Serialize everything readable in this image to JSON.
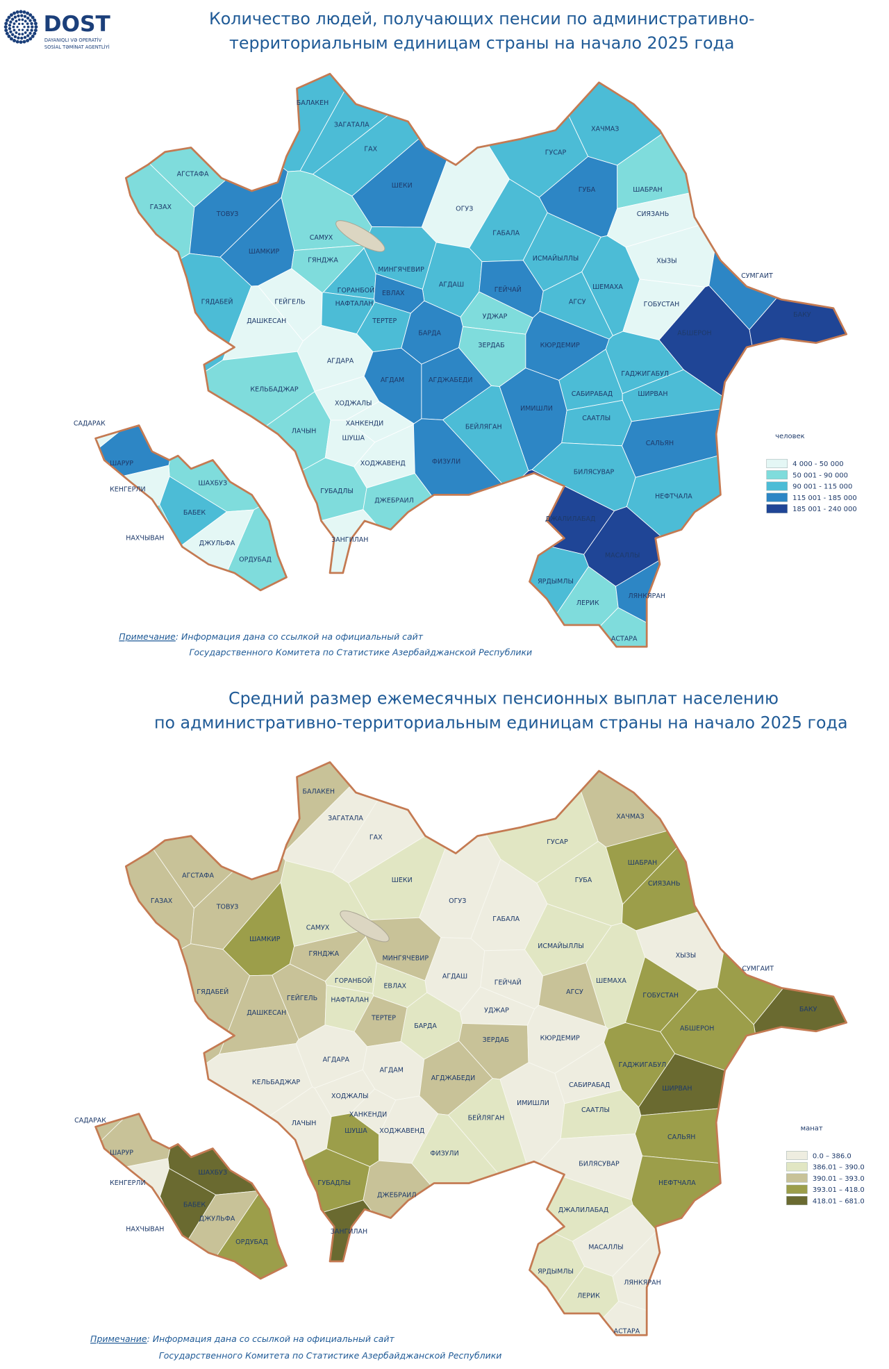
{
  "logo": {
    "name": "DOST",
    "line1": "DAYANIQLI VƏ OPERATİV",
    "line2": "SOSİAL TƏMİNAT AGENTLİYİ"
  },
  "maps": [
    {
      "title": [
        "Количество людей, получающих пенсии по административно-",
        "территориальным единицам страны на начало 2025 года"
      ],
      "legend_title": "человек",
      "legend": [
        {
          "label": "4 000 - 50 000",
          "color": "#e4f7f5"
        },
        {
          "label": "50 001 - 90 000",
          "color": "#7fdcdc"
        },
        {
          "label": "90 001 - 115 000",
          "color": "#4cbcd6"
        },
        {
          "label": "115 001 - 185 000",
          "color": "#2d86c5"
        },
        {
          "label": "185 001 - 240 000",
          "color": "#1f4596"
        }
      ],
      "regions": [
        {
          "name": "БАЛАКЕН",
          "color": "#4cbcd6"
        },
        {
          "name": "ЗАГАТАЛА",
          "color": "#4cbcd6"
        },
        {
          "name": "ГАХ",
          "color": "#4cbcd6"
        },
        {
          "name": "ШЕКИ",
          "color": "#2d86c5"
        },
        {
          "name": "ОГУЗ",
          "color": "#e4f7f5"
        },
        {
          "name": "ГУСАР",
          "color": "#4cbcd6"
        },
        {
          "name": "ХАЧМАЗ",
          "color": "#4cbcd6"
        },
        {
          "name": "ГУБА",
          "color": "#2d86c5"
        },
        {
          "name": "ШАБРАН",
          "color": "#7fdcdc"
        },
        {
          "name": "СИЯЗАНЬ",
          "color": "#e4f7f5"
        },
        {
          "name": "ГАБАЛА",
          "color": "#4cbcd6"
        },
        {
          "name": "ИСМАЙЫЛЛЫ",
          "color": "#4cbcd6"
        },
        {
          "name": "ХЫЗЫ",
          "color": "#e4f7f5"
        },
        {
          "name": "СУМГАИТ",
          "color": "#2d86c5"
        },
        {
          "name": "АГСТАФА",
          "color": "#7fdcdc"
        },
        {
          "name": "ГАЗАХ",
          "color": "#7fdcdc"
        },
        {
          "name": "ТОВУЗ",
          "color": "#2d86c5"
        },
        {
          "name": "САМУХ",
          "color": "#7fdcdc"
        },
        {
          "name": "ШАМКИР",
          "color": "#2d86c5"
        },
        {
          "name": "ГЯНДЖА",
          "color": "#7fdcdc"
        },
        {
          "name": "МИНГЯЧЕВИР",
          "color": "#4cbcd6"
        },
        {
          "name": "АГДАШ",
          "color": "#4cbcd6"
        },
        {
          "name": "ГЕЙЧАЙ",
          "color": "#2d86c5"
        },
        {
          "name": "ШЕМАХА",
          "color": "#4cbcd6"
        },
        {
          "name": "ГЯДАБЕЙ",
          "color": "#4cbcd6"
        },
        {
          "name": "ГЕЙГЕЛЬ",
          "color": "#e4f7f5"
        },
        {
          "name": "ГОРАНБОЙ",
          "color": "#4cbcd6"
        },
        {
          "name": "НАФТАЛАН",
          "color": "#4cbcd6"
        },
        {
          "name": "ЕВЛАХ",
          "color": "#2d86c5"
        },
        {
          "name": "АГСУ",
          "color": "#4cbcd6"
        },
        {
          "name": "ГОБУСТАН",
          "color": "#e4f7f5"
        },
        {
          "name": "ДАШКЕСАН",
          "color": "#e4f7f5"
        },
        {
          "name": "ТЕРТЕР",
          "color": "#4cbcd6"
        },
        {
          "name": "УДЖАР",
          "color": "#7fdcdc"
        },
        {
          "name": "БАКУ",
          "color": "#1f4596"
        },
        {
          "name": "БАРДА",
          "color": "#2d86c5"
        },
        {
          "name": "АБШЕРОН",
          "color": "#1f4596"
        },
        {
          "name": "ЗЕРДАБ",
          "color": "#7fdcdc"
        },
        {
          "name": "КЮРДЕМИР",
          "color": "#2d86c5"
        },
        {
          "name": "АГДАРА",
          "color": "#e4f7f5"
        },
        {
          "name": "АГДАМ",
          "color": "#2d86c5"
        },
        {
          "name": "АГДЖАБЕДИ",
          "color": "#2d86c5"
        },
        {
          "name": "ГАДЖИГАБУЛ",
          "color": "#4cbcd6"
        },
        {
          "name": "КЕЛЬБАДЖАР",
          "color": "#7fdcdc"
        },
        {
          "name": "САБИРАБАД",
          "color": "#4cbcd6"
        },
        {
          "name": "ШИРВАН",
          "color": "#4cbcd6"
        },
        {
          "name": "ХОДЖАЛЫ",
          "color": "#e4f7f5"
        },
        {
          "name": "ИМИШЛИ",
          "color": "#2d86c5"
        },
        {
          "name": "САЛЬЯН",
          "color": "#2d86c5"
        },
        {
          "name": "САДАРАК",
          "color": "#e4f7f5"
        },
        {
          "name": "ХАНКЕНДИ",
          "color": "#e4f7f5"
        },
        {
          "name": "СААТЛЫ",
          "color": "#4cbcd6"
        },
        {
          "name": "ЛАЧЫН",
          "color": "#7fdcdc"
        },
        {
          "name": "БЕЙЛЯГАН",
          "color": "#4cbcd6"
        },
        {
          "name": "ШУША",
          "color": "#e4f7f5"
        },
        {
          "name": "ШАРУР",
          "color": "#2d86c5"
        },
        {
          "name": "ХОДЖАВЕНД",
          "color": "#e4f7f5"
        },
        {
          "name": "ФИЗУЛИ",
          "color": "#2d86c5"
        },
        {
          "name": "ШАХБУЗ",
          "color": "#7fdcdc"
        },
        {
          "name": "БИЛЯСУВАР",
          "color": "#4cbcd6"
        },
        {
          "name": "КЕНГЕРЛИ",
          "color": "#e4f7f5"
        },
        {
          "name": "ГУБАДЛЫ",
          "color": "#7fdcdc"
        },
        {
          "name": "ДЖЕБРАИЛ",
          "color": "#7fdcdc"
        },
        {
          "name": "НЕФТЧАЛА",
          "color": "#4cbcd6"
        },
        {
          "name": "БАБЕК",
          "color": "#4cbcd6"
        },
        {
          "name": "ДЖАЛИЛАБАД",
          "color": "#1f4596"
        },
        {
          "name": "ДЖУЛЬФА",
          "color": "#e4f7f5"
        },
        {
          "name": "НАХЧЫВАН",
          "color": "#7fdcdc"
        },
        {
          "name": "ЗАНГИЛАН",
          "color": "#e4f7f5"
        },
        {
          "name": "МАСАЛЛЫ",
          "color": "#1f4596"
        },
        {
          "name": "ОРДУБАД",
          "color": "#7fdcdc"
        },
        {
          "name": "ЯРДЫМЛЫ",
          "color": "#4cbcd6"
        },
        {
          "name": "ЛЕРИК",
          "color": "#7fdcdc"
        },
        {
          "name": "ЛЯНКЯРАН",
          "color": "#2d86c5"
        },
        {
          "name": "АСТАРА",
          "color": "#7fdcdc"
        }
      ],
      "note": {
        "label": "Примечание",
        "line1": ": Информация дана со ссылкой на официальный сайт",
        "line2": "Государственного Комитета по Статистике Азербайджанской Республики"
      }
    },
    {
      "title": [
        "Средний размер ежемесячных пенсионных выплат населению",
        "по административно-территориальным единицам страны на начало 2025 года"
      ],
      "legend_title": "манат",
      "legend": [
        {
          "label": "0.0 – 386.0",
          "color": "#eeede0"
        },
        {
          "label": "386.01 – 390.0",
          "color": "#e1e6c3"
        },
        {
          "label": "390.01 – 393.0",
          "color": "#c8c298"
        },
        {
          "label": "393.01 – 418.0",
          "color": "#9c9e4a"
        },
        {
          "label": "418.01 – 681.0",
          "color": "#6a6a30"
        }
      ],
      "regions": [
        {
          "name": "БАЛАКЕН",
          "color": "#c8c298"
        },
        {
          "name": "ЗАГАТАЛА",
          "color": "#eeede0"
        },
        {
          "name": "ГАХ",
          "color": "#eeede0"
        },
        {
          "name": "ШЕКИ",
          "color": "#e1e6c3"
        },
        {
          "name": "ОГУЗ",
          "color": "#eeede0"
        },
        {
          "name": "ГУСАР",
          "color": "#e1e6c3"
        },
        {
          "name": "ХАЧМАЗ",
          "color": "#c8c298"
        },
        {
          "name": "ГУБА",
          "color": "#e1e6c3"
        },
        {
          "name": "ШАБРАН",
          "color": "#9c9e4a"
        },
        {
          "name": "СИЯЗАНЬ",
          "color": "#9c9e4a"
        },
        {
          "name": "ГАБАЛА",
          "color": "#eeede0"
        },
        {
          "name": "ИСМАЙЫЛЛЫ",
          "color": "#e1e6c3"
        },
        {
          "name": "ХЫЗЫ",
          "color": "#eeede0"
        },
        {
          "name": "СУМГАИТ",
          "color": "#9c9e4a"
        },
        {
          "name": "АГСТАФА",
          "color": "#c8c298"
        },
        {
          "name": "ГАЗАХ",
          "color": "#c8c298"
        },
        {
          "name": "ТОВУЗ",
          "color": "#c8c298"
        },
        {
          "name": "САМУХ",
          "color": "#e1e6c3"
        },
        {
          "name": "ШАМКИР",
          "color": "#9c9e4a"
        },
        {
          "name": "ГЯНДЖА",
          "color": "#c8c298"
        },
        {
          "name": "МИНГЯЧЕВИР",
          "color": "#c8c298"
        },
        {
          "name": "АГДАШ",
          "color": "#eeede0"
        },
        {
          "name": "ГЕЙЧАЙ",
          "color": "#eeede0"
        },
        {
          "name": "ШЕМАХА",
          "color": "#e1e6c3"
        },
        {
          "name": "ГЯДАБЕЙ",
          "color": "#c8c298"
        },
        {
          "name": "ГЕЙГЕЛЬ",
          "color": "#c8c298"
        },
        {
          "name": "ГОРАНБОЙ",
          "color": "#e1e6c3"
        },
        {
          "name": "НАФТАЛАН",
          "color": "#e1e6c3"
        },
        {
          "name": "ЕВЛАХ",
          "color": "#e1e6c3"
        },
        {
          "name": "АГСУ",
          "color": "#c8c298"
        },
        {
          "name": "ГОБУСТАН",
          "color": "#9c9e4a"
        },
        {
          "name": "ДАШКЕСАН",
          "color": "#c8c298"
        },
        {
          "name": "ТЕРТЕР",
          "color": "#c8c298"
        },
        {
          "name": "УДЖАР",
          "color": "#eeede0"
        },
        {
          "name": "БАКУ",
          "color": "#6a6a30"
        },
        {
          "name": "БАРДА",
          "color": "#e1e6c3"
        },
        {
          "name": "АБШЕРОН",
          "color": "#9c9e4a"
        },
        {
          "name": "ЗЕРДАБ",
          "color": "#c8c298"
        },
        {
          "name": "КЮРДЕМИР",
          "color": "#eeede0"
        },
        {
          "name": "АГДАРА",
          "color": "#eeede0"
        },
        {
          "name": "АГДАМ",
          "color": "#eeede0"
        },
        {
          "name": "АГДЖАБЕДИ",
          "color": "#c8c298"
        },
        {
          "name": "ГАДЖИГАБУЛ",
          "color": "#9c9e4a"
        },
        {
          "name": "КЕЛЬБАДЖАР",
          "color": "#eeede0"
        },
        {
          "name": "САБИРАБАД",
          "color": "#eeede0"
        },
        {
          "name": "ШИРВАН",
          "color": "#6a6a30"
        },
        {
          "name": "ХОДЖАЛЫ",
          "color": "#eeede0"
        },
        {
          "name": "ИМИШЛИ",
          "color": "#eeede0"
        },
        {
          "name": "САЛЬЯН",
          "color": "#9c9e4a"
        },
        {
          "name": "САДАРАК",
          "color": "#c8c298"
        },
        {
          "name": "ХАНКЕНДИ",
          "color": "#eeede0"
        },
        {
          "name": "СААТЛЫ",
          "color": "#e1e6c3"
        },
        {
          "name": "ЛАЧЫН",
          "color": "#eeede0"
        },
        {
          "name": "БЕЙЛЯГАН",
          "color": "#e1e6c3"
        },
        {
          "name": "ШУША",
          "color": "#9c9e4a"
        },
        {
          "name": "ШАРУР",
          "color": "#c8c298"
        },
        {
          "name": "ХОДЖАВЕНД",
          "color": "#eeede0"
        },
        {
          "name": "ФИЗУЛИ",
          "color": "#e1e6c3"
        },
        {
          "name": "ШАХБУЗ",
          "color": "#6a6a30"
        },
        {
          "name": "БИЛЯСУВАР",
          "color": "#eeede0"
        },
        {
          "name": "КЕНГЕРЛИ",
          "color": "#eeede0"
        },
        {
          "name": "ГУБАДЛЫ",
          "color": "#9c9e4a"
        },
        {
          "name": "ДЖЕБРАИЛ",
          "color": "#c8c298"
        },
        {
          "name": "НЕФТЧАЛА",
          "color": "#9c9e4a"
        },
        {
          "name": "БАБЕК",
          "color": "#6a6a30"
        },
        {
          "name": "ДЖАЛИЛАБАД",
          "color": "#e1e6c3"
        },
        {
          "name": "ДЖУЛЬФА",
          "color": "#c8c298"
        },
        {
          "name": "НАХЧЫВАН",
          "color": "#eeede0"
        },
        {
          "name": "ЗАНГИЛАН",
          "color": "#6a6a30"
        },
        {
          "name": "МАСАЛЛЫ",
          "color": "#eeede0"
        },
        {
          "name": "ОРДУБАД",
          "color": "#9c9e4a"
        },
        {
          "name": "ЯРДЫМЛЫ",
          "color": "#e1e6c3"
        },
        {
          "name": "ЛЕРИК",
          "color": "#e1e6c3"
        },
        {
          "name": "ЛЯНКЯРАН",
          "color": "#eeede0"
        },
        {
          "name": "АСТАРА",
          "color": "#eeede0"
        }
      ],
      "note": {
        "label": "Примечание",
        "line1": ": Информация дана со ссылкой на официальный сайт",
        "line2": "Государственного Комитета по Статистике Азербайджанской Республики"
      }
    }
  ]
}
